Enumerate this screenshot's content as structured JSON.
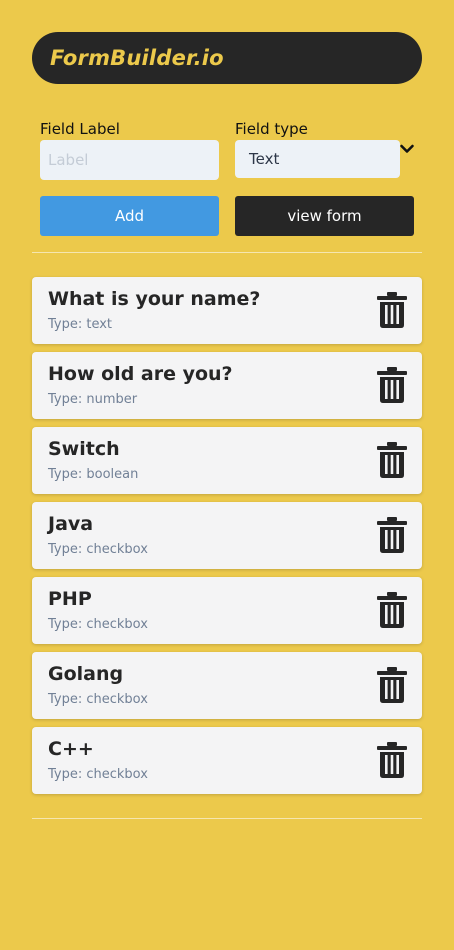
{
  "header": {
    "brand": "FormBuilder.io"
  },
  "form": {
    "label_caption": "Field Label",
    "label_placeholder": "Label",
    "label_value": "",
    "type_caption": "Field type",
    "type_selected": "Text",
    "add_label": "Add",
    "view_label": "view form"
  },
  "fields": [
    {
      "title": "What is your name?",
      "type": "Type: text"
    },
    {
      "title": "How old are you?",
      "type": "Type: number"
    },
    {
      "title": "Switch",
      "type": "Type: boolean"
    },
    {
      "title": "Java",
      "type": "Type: checkbox"
    },
    {
      "title": "PHP",
      "type": "Type: checkbox"
    },
    {
      "title": "Golang",
      "type": "Type: checkbox"
    },
    {
      "title": "C++",
      "type": "Type: checkbox"
    }
  ],
  "icons": {
    "dropdown": "chevron-down-icon",
    "delete": "trash-icon"
  },
  "colors": {
    "background": "#ecc94b",
    "header": "#262626",
    "brand_text": "#ecc94b",
    "add_button": "#4299e1",
    "view_button": "#262626",
    "card": "#f4f4f5"
  }
}
